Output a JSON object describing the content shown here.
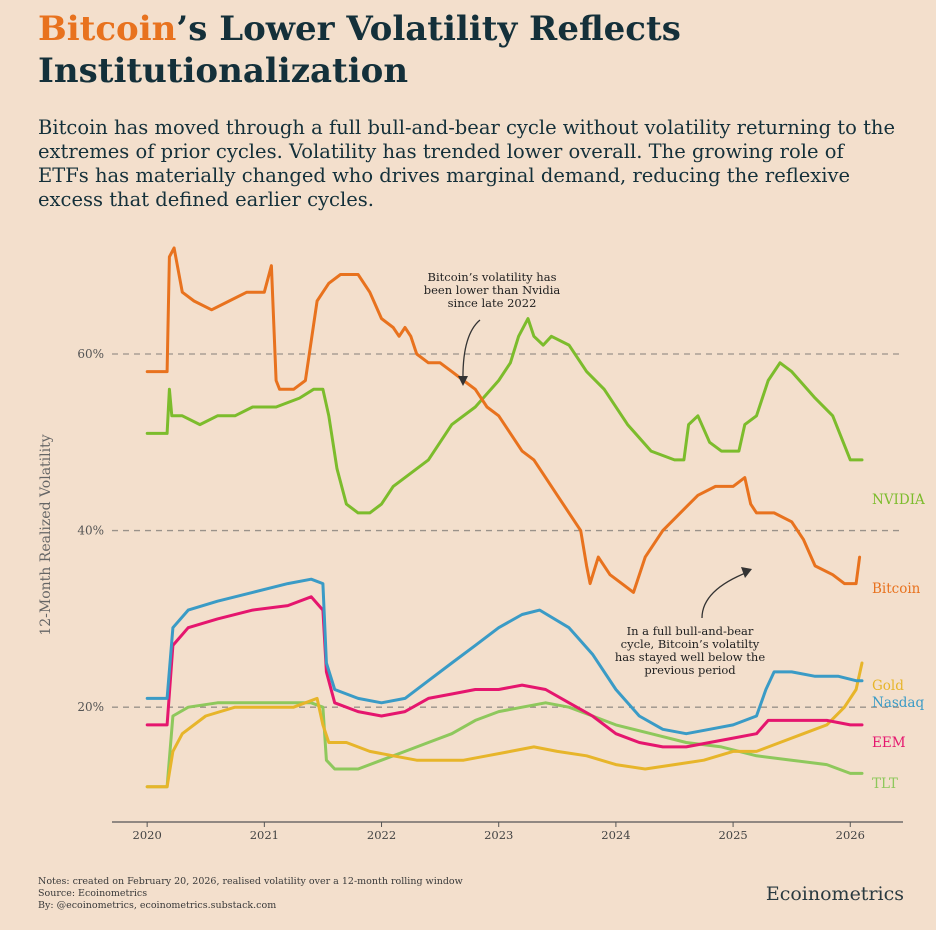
{
  "header": {
    "title_highlight": "Bitcoin",
    "title_rest_line1": "’s Lower Volatility Reflects",
    "title_line2": "Institutionalization",
    "subtitle": "Bitcoin has moved through a full bull-and-bear cycle without volatility returning to the extremes of prior cycles. Volatility has trended lower overall. The growing role of ETFs has materially changed who drives marginal demand, reducing the reflexive excess that defined earlier cycles."
  },
  "chart_data": {
    "type": "line",
    "title": "Bitcoin’s Lower Volatility Reflects Institutionalization",
    "xlabel": "",
    "ylabel": "12-Month Realized Volatility",
    "xlim": [
      2019.7,
      2026.45
    ],
    "ylim": [
      7,
      72
    ],
    "x_ticks": [
      2020,
      2021,
      2022,
      2023,
      2024,
      2025,
      2026
    ],
    "x_tick_labels": [
      "2020",
      "2021",
      "2022",
      "2023",
      "2024",
      "2025",
      "2026"
    ],
    "y_gridlines": [
      20,
      40,
      60
    ],
    "y_tick_labels": [
      "20%",
      "40%",
      "60%"
    ],
    "series": [
      {
        "name": "NVIDIA",
        "color": "#7cbc2c",
        "x": [
          2020.0,
          2020.17,
          2020.19,
          2020.21,
          2020.3,
          2020.45,
          2020.6,
          2020.75,
          2020.9,
          2021.1,
          2021.3,
          2021.42,
          2021.5,
          2021.55,
          2021.62,
          2021.7,
          2021.8,
          2021.9,
          2022.0,
          2022.1,
          2022.2,
          2022.4,
          2022.6,
          2022.8,
          2023.0,
          2023.1,
          2023.17,
          2023.25,
          2023.3,
          2023.38,
          2023.45,
          2023.6,
          2023.75,
          2023.9,
          2024.1,
          2024.3,
          2024.5,
          2024.58,
          2024.62,
          2024.7,
          2024.8,
          2024.9,
          2025.05,
          2025.1,
          2025.2,
          2025.3,
          2025.4,
          2025.5,
          2025.7,
          2025.85,
          2026.0,
          2026.1
        ],
        "values": [
          51,
          51,
          56,
          53,
          53,
          52,
          53,
          53,
          54,
          54,
          55,
          56,
          56,
          53,
          47,
          43,
          42,
          42,
          43,
          45,
          46,
          48,
          52,
          54,
          57,
          59,
          62,
          64,
          62,
          61,
          62,
          61,
          58,
          56,
          52,
          49,
          48,
          48,
          52,
          53,
          50,
          49,
          49,
          52,
          53,
          57,
          59,
          58,
          55,
          53,
          48,
          48
        ]
      },
      {
        "name": "Bitcoin",
        "color": "#e8721e",
        "x": [
          2020.0,
          2020.17,
          2020.19,
          2020.23,
          2020.3,
          2020.4,
          2020.55,
          2020.7,
          2020.85,
          2021.0,
          2021.06,
          2021.1,
          2021.13,
          2021.25,
          2021.35,
          2021.45,
          2021.5,
          2021.55,
          2021.65,
          2021.75,
          2021.8,
          2021.9,
          2022.0,
          2022.1,
          2022.15,
          2022.2,
          2022.25,
          2022.3,
          2022.4,
          2022.5,
          2022.6,
          2022.7,
          2022.8,
          2022.9,
          2023.0,
          2023.1,
          2023.2,
          2023.3,
          2023.4,
          2023.5,
          2023.6,
          2023.7,
          2023.75,
          2023.78,
          2023.85,
          2023.95,
          2024.05,
          2024.15,
          2024.25,
          2024.4,
          2024.55,
          2024.7,
          2024.85,
          2025.0,
          2025.1,
          2025.15,
          2025.2,
          2025.35,
          2025.5,
          2025.6,
          2025.7,
          2025.85,
          2025.95,
          2026.0,
          2026.05,
          2026.08
        ],
        "values": [
          58,
          58,
          71,
          72,
          67,
          66,
          65,
          66,
          67,
          67,
          70,
          57,
          56,
          56,
          57,
          66,
          67,
          68,
          69,
          69,
          69,
          67,
          64,
          63,
          62,
          63,
          62,
          60,
          59,
          59,
          58,
          57,
          56,
          54,
          53,
          51,
          49,
          48,
          46,
          44,
          42,
          40,
          36,
          34,
          37,
          35,
          34,
          33,
          37,
          40,
          42,
          44,
          45,
          45,
          46,
          43,
          42,
          42,
          41,
          39,
          36,
          35,
          34,
          34,
          34,
          37
        ]
      },
      {
        "name": "Gold",
        "color": "#e7b52a",
        "x": [
          2020.0,
          2020.17,
          2020.22,
          2020.3,
          2020.5,
          2020.75,
          2021.0,
          2021.25,
          2021.45,
          2021.5,
          2021.55,
          2021.7,
          2021.9,
          2022.1,
          2022.3,
          2022.5,
          2022.7,
          2022.9,
          2023.1,
          2023.3,
          2023.5,
          2023.75,
          2024.0,
          2024.25,
          2024.5,
          2024.75,
          2025.0,
          2025.2,
          2025.4,
          2025.6,
          2025.8,
          2025.95,
          2026.05,
          2026.1
        ],
        "values": [
          11,
          11,
          15,
          17,
          19,
          20,
          20,
          20,
          21,
          18,
          16,
          16,
          15,
          14.5,
          14,
          14,
          14,
          14.5,
          15,
          15.5,
          15,
          14.5,
          13.5,
          13,
          13.5,
          14,
          15,
          15,
          16,
          17,
          18,
          20,
          22,
          25
        ]
      },
      {
        "name": "Nasdaq",
        "color": "#3a9bc6",
        "x": [
          2020.0,
          2020.17,
          2020.22,
          2020.35,
          2020.6,
          2020.9,
          2021.2,
          2021.4,
          2021.5,
          2021.53,
          2021.6,
          2021.8,
          2022.0,
          2022.2,
          2022.4,
          2022.6,
          2022.8,
          2023.0,
          2023.2,
          2023.35,
          2023.6,
          2023.8,
          2024.0,
          2024.2,
          2024.4,
          2024.6,
          2024.8,
          2025.0,
          2025.2,
          2025.28,
          2025.35,
          2025.5,
          2025.7,
          2025.9,
          2026.05,
          2026.1
        ],
        "values": [
          21,
          21,
          29,
          31,
          32,
          33,
          34,
          34.5,
          34,
          25,
          22,
          21,
          20.5,
          21,
          23,
          25,
          27,
          29,
          30.5,
          31,
          29,
          26,
          22,
          19,
          17.5,
          17,
          17.5,
          18,
          19,
          22,
          24,
          24,
          23.5,
          23.5,
          23,
          23
        ]
      },
      {
        "name": "EEM",
        "color": "#e5166e",
        "x": [
          2020.0,
          2020.17,
          2020.22,
          2020.35,
          2020.6,
          2020.9,
          2021.2,
          2021.4,
          2021.5,
          2021.53,
          2021.6,
          2021.8,
          2022.0,
          2022.2,
          2022.4,
          2022.6,
          2022.8,
          2023.0,
          2023.2,
          2023.4,
          2023.6,
          2023.8,
          2024.0,
          2024.2,
          2024.4,
          2024.6,
          2024.8,
          2025.0,
          2025.2,
          2025.3,
          2025.4,
          2025.6,
          2025.8,
          2026.0,
          2026.1
        ],
        "values": [
          18,
          18,
          27,
          29,
          30,
          31,
          31.5,
          32.5,
          31,
          24,
          20.5,
          19.5,
          19,
          19.5,
          21,
          21.5,
          22,
          22,
          22.5,
          22,
          20.5,
          19,
          17,
          16,
          15.5,
          15.5,
          16,
          16.5,
          17,
          18.5,
          18.5,
          18.5,
          18.5,
          18,
          18
        ]
      },
      {
        "name": "TLT",
        "color": "#8ec85c",
        "x": [
          2020.0,
          2020.17,
          2020.22,
          2020.35,
          2020.6,
          2020.9,
          2021.2,
          2021.4,
          2021.5,
          2021.53,
          2021.6,
          2021.8,
          2022.0,
          2022.2,
          2022.4,
          2022.6,
          2022.8,
          2023.0,
          2023.2,
          2023.4,
          2023.6,
          2023.8,
          2024.0,
          2024.3,
          2024.6,
          2024.9,
          2025.2,
          2025.5,
          2025.8,
          2026.0,
          2026.1
        ],
        "values": [
          11,
          11,
          19,
          20,
          20.5,
          20.5,
          20.5,
          20.5,
          20,
          14,
          13,
          13,
          14,
          15,
          16,
          17,
          18.5,
          19.5,
          20,
          20.5,
          20,
          19,
          18,
          17,
          16,
          15.5,
          14.5,
          14,
          13.5,
          12.5,
          12.5
        ]
      }
    ],
    "series_labels": [
      "NVIDIA",
      "Bitcoin",
      "Gold",
      "Nasdaq",
      "EEM",
      "TLT"
    ],
    "annotations": [
      "Bitcoin’s volatility has been lower than Nvidia since late 2022",
      "In a full bull-and-bear cycle, Bitcoin’s volatilty has stayed well below the previous period"
    ]
  },
  "annotations_text": {
    "top": [
      "Bitcoin’s volatility has",
      "been lower than Nvidia",
      "since late 2022"
    ],
    "bottom": [
      "In a full bull-and-bear",
      "cycle, Bitcoin’s volatilty",
      "has stayed well below the",
      "previous period"
    ]
  },
  "footer": {
    "notes": "Notes: created on February 20, 2026, realised volatility over a 12-month rolling window",
    "source": "Source: Ecoinometrics",
    "by": "By: @ecoinometrics, ecoinometrics.substack.com",
    "brand": "Ecoinometrics"
  }
}
